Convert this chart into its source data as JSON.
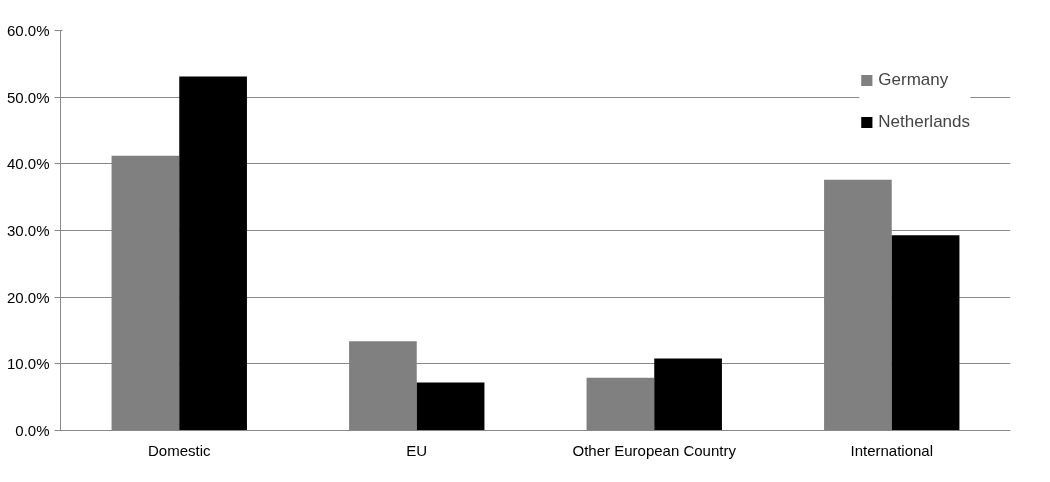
{
  "chart_data": {
    "type": "bar",
    "categories": [
      "Domestic",
      "EU",
      "Other European Country",
      "International"
    ],
    "series": [
      {
        "name": "Germany",
        "color": "#808080",
        "values": [
          41.2,
          13.4,
          7.9,
          37.6
        ]
      },
      {
        "name": "Netherlands",
        "color": "#000000",
        "values": [
          53.1,
          7.2,
          10.8,
          29.3
        ]
      }
    ],
    "ylim": [
      0,
      60
    ],
    "yticks": [
      {
        "value": 0,
        "label": "0.0%"
      },
      {
        "value": 10,
        "label": "10.0%"
      },
      {
        "value": 20,
        "label": "20.0%"
      },
      {
        "value": 30,
        "label": "30.0%"
      },
      {
        "value": 40,
        "label": "40.0%"
      },
      {
        "value": 50,
        "label": "50.0%"
      },
      {
        "value": 60,
        "label": "60.0%"
      }
    ],
    "grid": "y",
    "legend": "top right"
  }
}
